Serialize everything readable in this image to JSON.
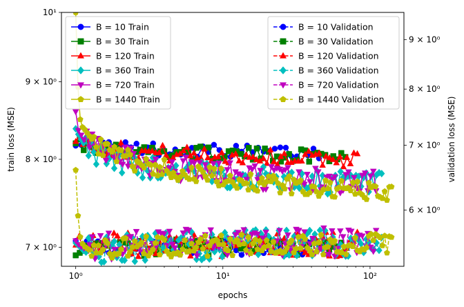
{
  "chart_data": {
    "type": "line",
    "title": "",
    "xlabel": "epochs",
    "ylabel_left": "train loss (MSE)",
    "ylabel_right": "validation loss (MSE)",
    "xscale": "log",
    "yscale_left": "log",
    "yscale_right": "log",
    "xlim": [
      0.8,
      170
    ],
    "ylim_left": [
      6.8,
      10
    ],
    "ylim_right": [
      5.25,
      9.6
    ],
    "x_ticks": [
      {
        "value": 1,
        "label": "10⁰"
      },
      {
        "value": 10,
        "label": "10¹"
      },
      {
        "value": 100,
        "label": "10²"
      }
    ],
    "y_ticks_left": [
      {
        "value": 7,
        "label": "7 × 10⁰"
      },
      {
        "value": 8,
        "label": "8 × 10⁰"
      },
      {
        "value": 9,
        "label": "9 × 10⁰"
      },
      {
        "value": 10,
        "label": "10¹"
      }
    ],
    "y_ticks_right": [
      {
        "value": 6,
        "label": "6 × 10⁰"
      },
      {
        "value": 7,
        "label": "7 × 10⁰"
      },
      {
        "value": 8,
        "label": "8 × 10⁰"
      },
      {
        "value": 9,
        "label": "9 × 10⁰"
      }
    ],
    "legend_train_location": "upper-left",
    "legend_validation_location": "upper-right",
    "series": [
      {
        "name": "B = 10 Train",
        "axis": "left",
        "style": "solid",
        "marker": "circle",
        "color": "#0000ff",
        "epochs": 45,
        "x_start": 1,
        "x_end": 45,
        "start": 8.25,
        "end": 8.08,
        "noise": 0.01,
        "early": []
      },
      {
        "name": "B = 30 Train",
        "axis": "left",
        "style": "solid",
        "marker": "square",
        "color": "#008000",
        "epochs": 68,
        "x_start": 1,
        "x_end": 68,
        "start": 8.24,
        "end": 8.04,
        "noise": 0.01,
        "early": []
      },
      {
        "name": "B = 120 Train",
        "axis": "left",
        "style": "solid",
        "marker": "triangle-up",
        "color": "#ff0000",
        "epochs": 82,
        "x_start": 1,
        "x_end": 82,
        "start": 8.29,
        "end": 8.0,
        "noise": 0.012,
        "early": []
      },
      {
        "name": "B = 360 Train",
        "axis": "left",
        "style": "solid",
        "marker": "diamond",
        "color": "#00bfbf",
        "epochs": 120,
        "x_start": 1,
        "x_end": 120,
        "start": 8.38,
        "end": 7.7,
        "noise": 0.018,
        "early": [
          8.38,
          8.31,
          8.25,
          8.2
        ]
      },
      {
        "name": "B = 720 Train",
        "axis": "left",
        "style": "solid",
        "marker": "triangle-down",
        "color": "#bf00bf",
        "epochs": 110,
        "x_start": 1,
        "x_end": 110,
        "start": 8.6,
        "end": 7.72,
        "noise": 0.02,
        "early": [
          8.6,
          8.36,
          8.3,
          8.24
        ]
      },
      {
        "name": "B = 1440 Train",
        "axis": "left",
        "style": "solid",
        "marker": "pentagon",
        "color": "#bfbf00",
        "epochs": 140,
        "x_start": 1,
        "x_end": 140,
        "start": 10.0,
        "end": 7.6,
        "noise": 0.015,
        "early": [
          10.0,
          8.93,
          8.5,
          8.4,
          8.37,
          8.33,
          8.29,
          8.25
        ]
      },
      {
        "name": "B = 10 Validation",
        "axis": "right",
        "style": "dashed",
        "marker": "circle",
        "color": "#0000ff",
        "epochs": 45,
        "x_start": 1,
        "x_end": 45,
        "start": 5.5,
        "end": 5.48,
        "noise": 0.018,
        "early": []
      },
      {
        "name": "B = 30 Validation",
        "axis": "right",
        "style": "dashed",
        "marker": "square",
        "color": "#008000",
        "epochs": 68,
        "x_start": 1,
        "x_end": 68,
        "start": 5.49,
        "end": 5.49,
        "noise": 0.02,
        "early": []
      },
      {
        "name": "B = 120 Validation",
        "axis": "right",
        "style": "dashed",
        "marker": "triangle-up",
        "color": "#ff0000",
        "epochs": 82,
        "x_start": 1,
        "x_end": 82,
        "start": 5.51,
        "end": 5.54,
        "noise": 0.03,
        "early": []
      },
      {
        "name": "B = 360 Validation",
        "axis": "right",
        "style": "dashed",
        "marker": "diamond",
        "color": "#00bfbf",
        "epochs": 120,
        "x_start": 1,
        "x_end": 120,
        "start": 5.55,
        "end": 5.56,
        "noise": 0.035,
        "early": [
          5.55,
          5.52,
          5.49,
          5.45,
          5.43
        ]
      },
      {
        "name": "B = 720 Validation",
        "axis": "right",
        "style": "dashed",
        "marker": "triangle-down",
        "color": "#bf00bf",
        "epochs": 110,
        "x_start": 1,
        "x_end": 110,
        "start": 5.58,
        "end": 5.57,
        "noise": 0.035,
        "early": [
          5.58,
          5.53,
          5.5,
          5.48
        ]
      },
      {
        "name": "B = 1440 Validation",
        "axis": "right",
        "style": "dashed",
        "marker": "pentagon",
        "color": "#bfbf00",
        "epochs": 140,
        "x_start": 1,
        "x_end": 140,
        "start": 6.6,
        "end": 5.54,
        "noise": 0.025,
        "early": [
          6.6,
          5.92,
          5.63,
          5.54,
          5.5,
          5.48,
          5.46
        ]
      }
    ]
  }
}
